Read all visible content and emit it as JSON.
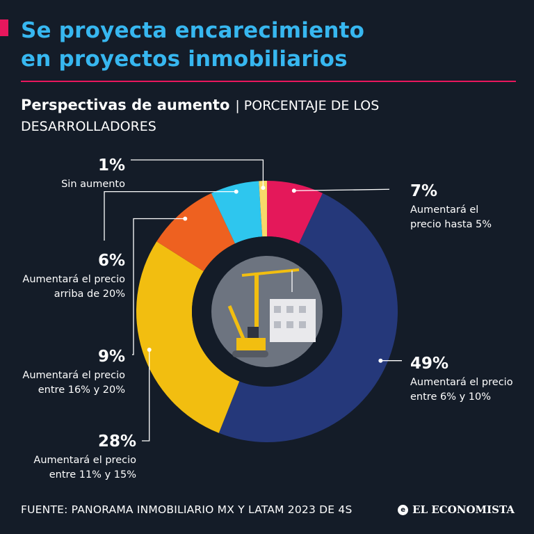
{
  "header": {
    "title_line1": "Se proyecta encarecimiento",
    "title_line2": "en proyectos inmobiliarios",
    "subtitle_bold": "Perspectivas de aumento",
    "subtitle_sep": "|",
    "subtitle_light": "PORCENTAJE DE LOS DESARROLLADORES"
  },
  "chart_data": {
    "type": "pie",
    "variant": "donut",
    "title": "Perspectivas de aumento",
    "unit": "porcentaje de los desarrolladores",
    "slices": [
      {
        "pct_label": "7%",
        "value": 7,
        "label_lines": [
          "Aumentará el",
          "precio hasta 5%"
        ],
        "color": "#e4185a"
      },
      {
        "pct_label": "49%",
        "value": 49,
        "label_lines": [
          "Aumentará el precio",
          "entre 6% y 10%"
        ],
        "color": "#25387a"
      },
      {
        "pct_label": "28%",
        "value": 28,
        "label_lines": [
          "Aumentará el precio",
          "entre 11% y 15%"
        ],
        "color": "#f2be10"
      },
      {
        "pct_label": "9%",
        "value": 9,
        "label_lines": [
          "Aumentará el precio",
          "entre 16% y 20%"
        ],
        "color": "#ee6120"
      },
      {
        "pct_label": "6%",
        "value": 6,
        "label_lines": [
          "Aumentará el precio",
          "arriba de 20%"
        ],
        "color": "#2ec6ee"
      },
      {
        "pct_label": "1%",
        "value": 1,
        "label_lines": [
          "Sin aumento"
        ],
        "color": "#f7d96a"
      }
    ]
  },
  "center_illustration": "construction-crane-icon",
  "footer": {
    "source": "FUENTE: PANORAMA INMOBILIARIO MX Y LATAM 2023 DE 4S",
    "brand": "EL ECONOMISTA",
    "brand_icon_glyph": "e"
  }
}
